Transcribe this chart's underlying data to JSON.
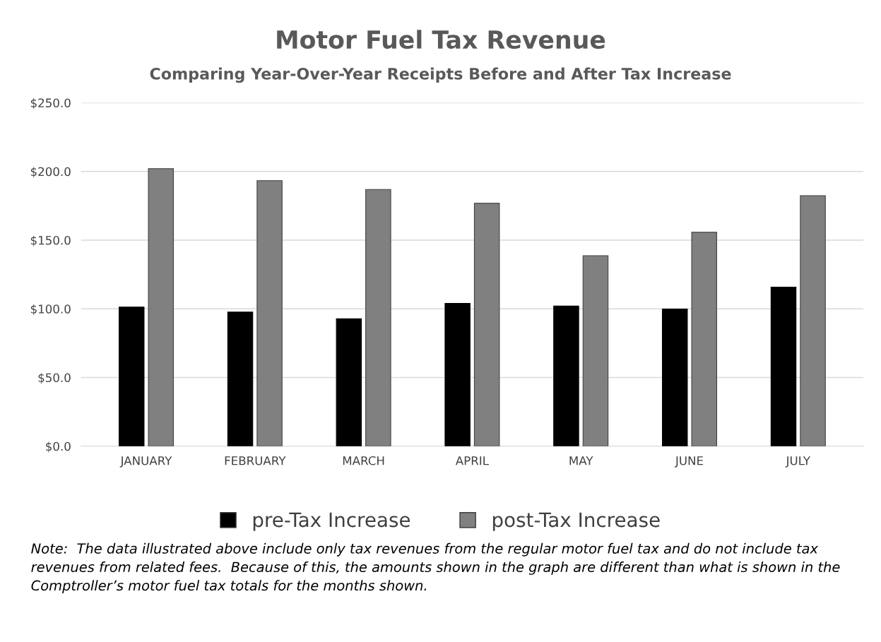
{
  "chart_data": {
    "type": "bar",
    "title": "Motor Fuel Tax Revenue",
    "subtitle": "Comparing Year-Over-Year Receipts Before and After Tax Increase",
    "categories": [
      "JANUARY",
      "FEBRUARY",
      "MARCH",
      "APRIL",
      "MAY",
      "JUNE",
      "JULY"
    ],
    "series": [
      {
        "name": "pre-Tax Increase",
        "color": "#000000",
        "values": [
          101.3,
          97.6,
          92.8,
          103.9,
          102.0,
          99.8,
          115.8
        ]
      },
      {
        "name": "post-Tax Increase",
        "color": "#808080",
        "values": [
          202.0,
          193.3,
          186.9,
          176.8,
          138.7,
          155.7,
          182.4
        ]
      }
    ],
    "ylim": [
      0,
      250
    ],
    "yticks": [
      {
        "value": 0,
        "label": "$0.0"
      },
      {
        "value": 50,
        "label": "$50.0"
      },
      {
        "value": 100,
        "label": "$100.0"
      },
      {
        "value": 150,
        "label": "$150.0"
      },
      {
        "value": 200,
        "label": "$200.0"
      },
      {
        "value": 250,
        "label": "$250.0"
      }
    ],
    "grid": "y",
    "legend": "bottom",
    "annotations": [
      "Note:  The data illustrated above include only tax revenues from the regular motor fuel tax and do not include tax revenues from related fees.  Because of this, the amounts shown in the graph are different than what is shown in the Comptroller’s motor fuel tax totals for the months shown."
    ]
  }
}
